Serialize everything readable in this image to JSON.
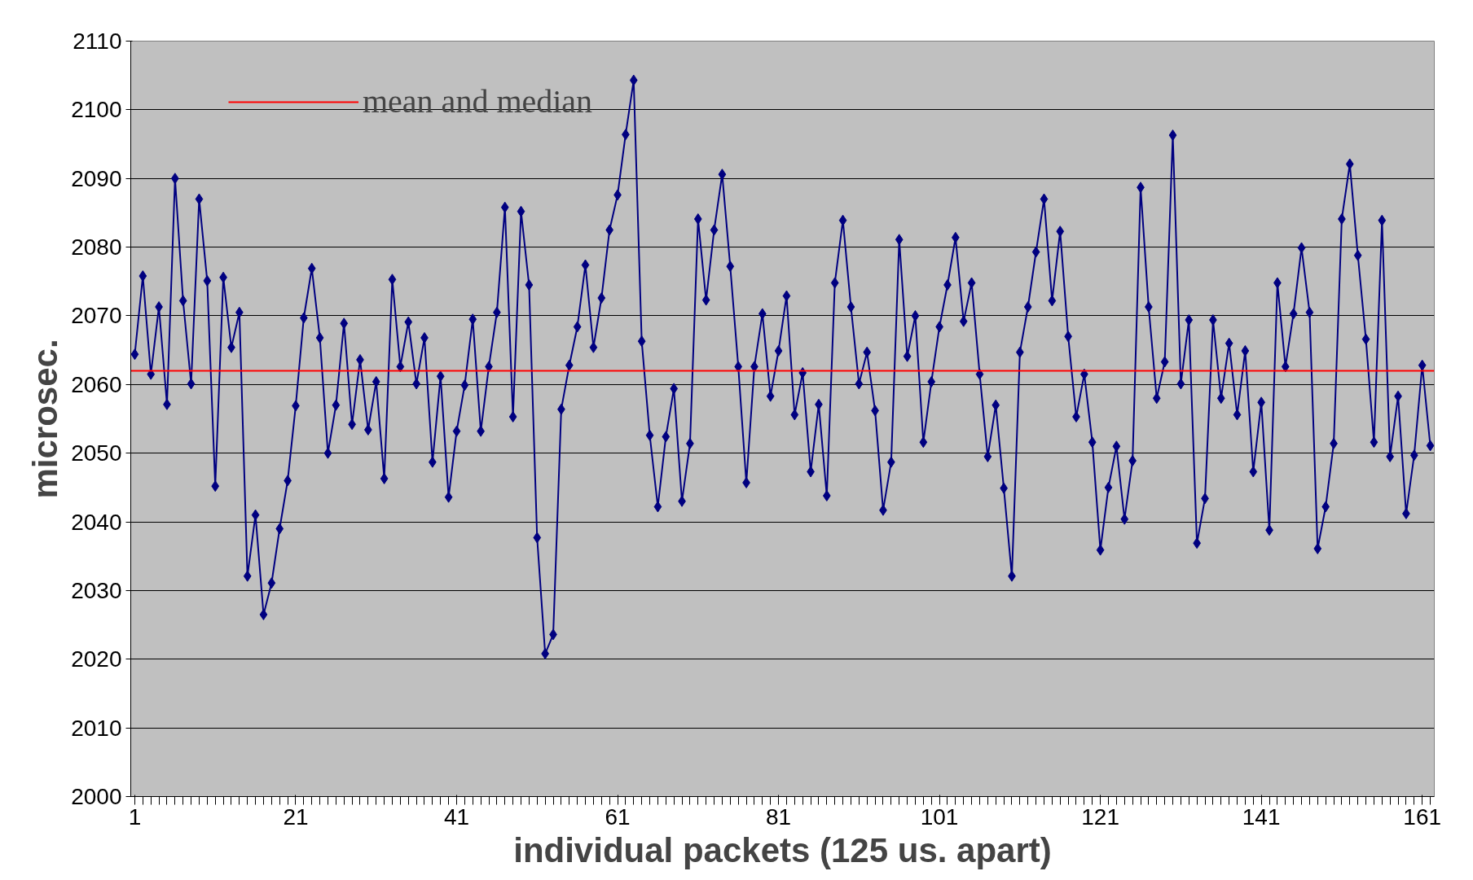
{
  "chart_data": {
    "type": "line",
    "xlabel": "individual packets (125 us. apart)",
    "ylabel": "microsec.",
    "x": [
      1,
      2,
      3,
      4,
      5,
      6,
      7,
      8,
      9,
      10,
      11,
      12,
      13,
      14,
      15,
      16,
      17,
      18,
      19,
      20,
      21,
      22,
      23,
      24,
      25,
      26,
      27,
      28,
      29,
      30,
      31,
      32,
      33,
      34,
      35,
      36,
      37,
      38,
      39,
      40,
      41,
      42,
      43,
      44,
      45,
      46,
      47,
      48,
      49,
      50,
      51,
      52,
      53,
      54,
      55,
      56,
      57,
      58,
      59,
      60,
      61,
      62,
      63,
      64,
      65,
      66,
      67,
      68,
      69,
      70,
      71,
      72,
      73,
      74,
      75,
      76,
      77,
      78,
      79,
      80,
      81,
      82,
      83,
      84,
      85,
      86,
      87,
      88,
      89,
      90,
      91,
      92,
      93,
      94,
      95,
      96,
      97,
      98,
      99,
      100,
      101,
      102,
      103,
      104,
      105,
      106,
      107,
      108,
      109,
      110,
      111,
      112,
      113,
      114,
      115,
      116,
      117,
      118,
      119,
      120,
      121,
      122,
      123,
      124,
      125,
      126,
      127,
      128,
      129,
      130,
      131,
      132,
      133,
      134,
      135,
      136,
      137,
      138,
      139,
      140,
      141,
      142,
      143,
      144,
      145,
      146,
      147,
      148,
      149,
      150,
      151,
      152,
      153,
      154,
      155,
      156,
      157,
      158,
      159,
      160,
      161,
      162
    ],
    "series": [
      {
        "color": "#000080",
        "values": [
          2064.4,
          2075.8,
          2061.5,
          2071.3,
          2057.1,
          2090.0,
          2072.2,
          2060.1,
          2087.0,
          2075.1,
          2045.2,
          2075.6,
          2065.4,
          2070.5,
          2032.1,
          2041.0,
          2026.5,
          2031.1,
          2039.0,
          2046.0,
          2056.9,
          2069.7,
          2076.9,
          2066.8,
          2050.0,
          2057.0,
          2068.9,
          2054.2,
          2063.6,
          2053.4,
          2060.4,
          2046.3,
          2075.3,
          2062.6,
          2069.1,
          2060.1,
          2066.8,
          2048.7,
          2061.2,
          2043.6,
          2053.2,
          2059.9,
          2069.5,
          2053.2,
          2062.6,
          2070.5,
          2085.8,
          2055.3,
          2085.2,
          2074.5,
          2037.7,
          2020.8,
          2023.6,
          2056.4,
          2062.8,
          2068.4,
          2077.4,
          2065.4,
          2072.6,
          2082.5,
          2087.6,
          2096.4,
          2104.3,
          2066.3,
          2052.6,
          2042.2,
          2052.4,
          2059.4,
          2043.0,
          2051.4,
          2084.1,
          2072.3,
          2082.5,
          2090.6,
          2077.2,
          2062.6,
          2045.7,
          2062.6,
          2070.3,
          2058.3,
          2064.9,
          2072.9,
          2055.6,
          2061.7,
          2047.3,
          2057.1,
          2043.8,
          2074.8,
          2083.9,
          2071.3,
          2060.1,
          2064.7,
          2056.2,
          2041.7,
          2048.7,
          2081.1,
          2064.1,
          2070.0,
          2051.6,
          2060.4,
          2068.4,
          2074.5,
          2081.4,
          2069.2,
          2074.8,
          2061.5,
          2049.5,
          2057.0,
          2044.9,
          2032.1,
          2064.7,
          2071.3,
          2079.3,
          2087.0,
          2072.2,
          2082.3,
          2067.0,
          2055.3,
          2061.5,
          2051.6,
          2035.9,
          2045.0,
          2051.0,
          2040.4,
          2048.9,
          2088.7,
          2071.3,
          2058.0,
          2063.3,
          2096.3,
          2060.1,
          2069.4,
          2036.9,
          2043.4,
          2069.4,
          2058.0,
          2066.0,
          2055.6,
          2064.9,
          2047.3,
          2057.4,
          2038.8,
          2074.8,
          2062.6,
          2070.3,
          2079.9,
          2070.5,
          2036.1,
          2042.2,
          2051.4,
          2084.1,
          2092.1,
          2078.8,
          2066.6,
          2051.6,
          2083.9,
          2049.5,
          2058.3,
          2041.2,
          2049.7,
          2062.8,
          2051.1
        ]
      }
    ],
    "marker": "diamond",
    "xlim": [
      0.5,
      162.5
    ],
    "xticks": [
      1,
      21,
      41,
      61,
      81,
      101,
      121,
      141,
      161
    ],
    "ylim": [
      2000,
      2110
    ],
    "yticks": [
      2000,
      2010,
      2020,
      2030,
      2040,
      2050,
      2060,
      2070,
      2080,
      2090,
      2100,
      2110
    ],
    "grid": "y",
    "legend": "top left",
    "ref_lines": [
      {
        "axis": "y",
        "value": 2062,
        "label": "mean and median",
        "color": "#ff0000"
      }
    ]
  }
}
